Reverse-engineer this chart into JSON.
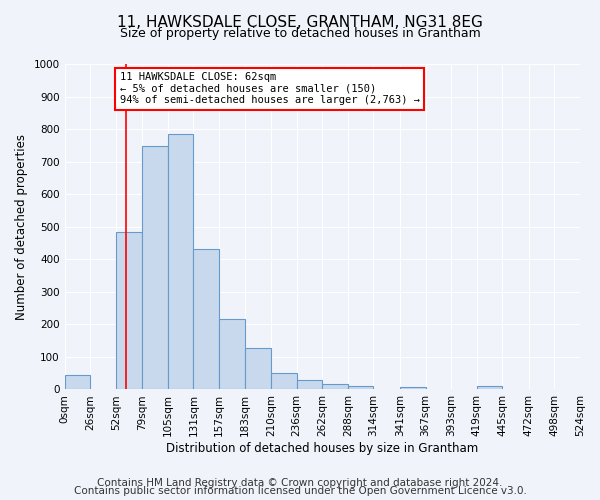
{
  "title": "11, HAWKSDALE CLOSE, GRANTHAM, NG31 8EG",
  "subtitle": "Size of property relative to detached houses in Grantham",
  "xlabel": "Distribution of detached houses by size in Grantham",
  "ylabel": "Number of detached properties",
  "bin_edges": [
    0,
    26,
    52,
    79,
    105,
    131,
    157,
    183,
    210,
    236,
    262,
    288,
    314,
    341,
    367,
    393,
    419,
    445,
    472,
    498,
    524
  ],
  "bar_heights": [
    45,
    0,
    483,
    748,
    785,
    433,
    218,
    127,
    52,
    30,
    18,
    10,
    0,
    8,
    0,
    0,
    10,
    0,
    0,
    0
  ],
  "bar_facecolor": "#c9d9ed",
  "bar_edgecolor": "#6699cc",
  "vline_x": 62,
  "vline_color": "red",
  "annotation_line1": "11 HAWKSDALE CLOSE: 62sqm",
  "annotation_line2": "← 5% of detached houses are smaller (150)",
  "annotation_line3": "94% of semi-detached houses are larger (2,763) →",
  "annotation_box_edgecolor": "red",
  "ylim": [
    0,
    1000
  ],
  "yticks": [
    0,
    100,
    200,
    300,
    400,
    500,
    600,
    700,
    800,
    900,
    1000
  ],
  "tick_labels": [
    "0sqm",
    "26sqm",
    "52sqm",
    "79sqm",
    "105sqm",
    "131sqm",
    "157sqm",
    "183sqm",
    "210sqm",
    "236sqm",
    "262sqm",
    "288sqm",
    "314sqm",
    "341sqm",
    "367sqm",
    "393sqm",
    "419sqm",
    "445sqm",
    "472sqm",
    "498sqm",
    "524sqm"
  ],
  "footer1": "Contains HM Land Registry data © Crown copyright and database right 2024.",
  "footer2": "Contains public sector information licensed under the Open Government Licence v3.0.",
  "bg_color": "#f0f4fa",
  "plot_bg_color": "#f0f4fa",
  "grid_color": "#ffffff",
  "title_fontsize": 11,
  "subtitle_fontsize": 9,
  "axis_label_fontsize": 8.5,
  "tick_fontsize": 7.5,
  "footer_fontsize": 7.5
}
